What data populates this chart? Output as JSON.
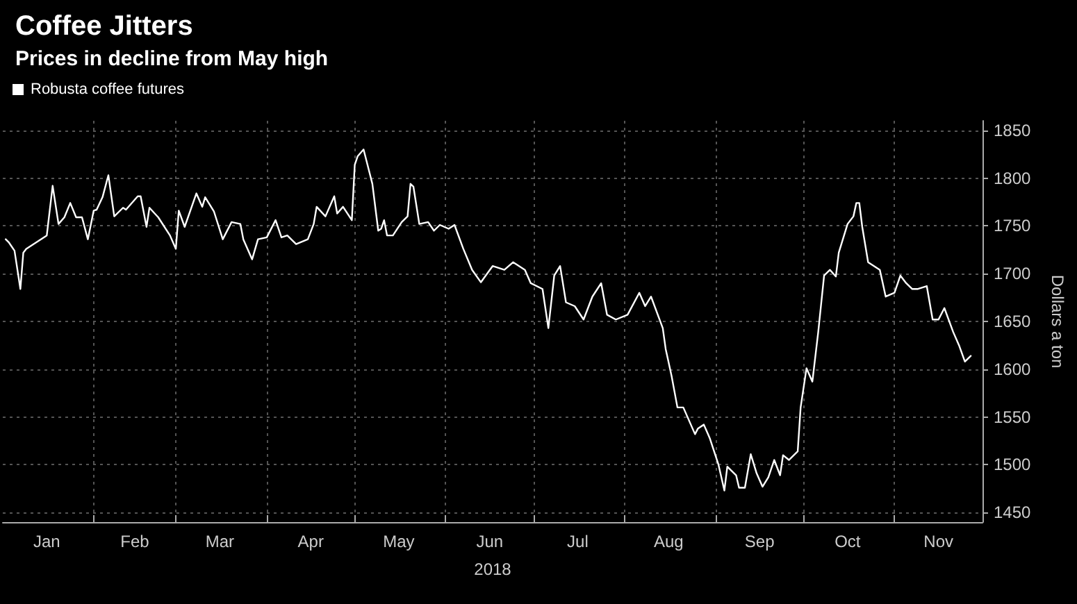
{
  "chart_data": {
    "type": "line",
    "title": "Coffee Jitters",
    "subtitle": "Prices in decline from May high",
    "xlabel": "2018",
    "ylabel": "Dollars a ton",
    "x": [
      "2018-01-02",
      "2018-01-03",
      "2018-01-05",
      "2018-01-07",
      "2018-01-08",
      "2018-01-09",
      "2018-01-16",
      "2018-01-18",
      "2018-01-20",
      "2018-01-22",
      "2018-01-24",
      "2018-01-26",
      "2018-01-28",
      "2018-01-30",
      "2018-02-01",
      "2018-02-02",
      "2018-02-04",
      "2018-02-06",
      "2018-02-08",
      "2018-02-11",
      "2018-02-12",
      "2018-02-16",
      "2018-02-17",
      "2018-02-19",
      "2018-02-20",
      "2018-02-23",
      "2018-02-27",
      "2018-03-01",
      "2018-03-02",
      "2018-03-04",
      "2018-03-08",
      "2018-03-10",
      "2018-03-11",
      "2018-03-14",
      "2018-03-17",
      "2018-03-20",
      "2018-03-23",
      "2018-03-24",
      "2018-03-27",
      "2018-03-29",
      "2018-04-01",
      "2018-04-04",
      "2018-04-06",
      "2018-04-08",
      "2018-04-11",
      "2018-04-15",
      "2018-04-17",
      "2018-04-18",
      "2018-04-21",
      "2018-04-24",
      "2018-04-25",
      "2018-04-27",
      "2018-04-30",
      "2018-05-01",
      "2018-05-02",
      "2018-05-04",
      "2018-05-07",
      "2018-05-09",
      "2018-05-10",
      "2018-05-11",
      "2018-05-12",
      "2018-05-14",
      "2018-05-17",
      "2018-05-19",
      "2018-05-20",
      "2018-05-21",
      "2018-05-23",
      "2018-05-26",
      "2018-05-28",
      "2018-05-30",
      "2018-06-02",
      "2018-06-04",
      "2018-06-07",
      "2018-06-10",
      "2018-06-13",
      "2018-06-17",
      "2018-06-21",
      "2018-06-24",
      "2018-06-28",
      "2018-06-30",
      "2018-07-04",
      "2018-07-06",
      "2018-07-08",
      "2018-07-10",
      "2018-07-12",
      "2018-07-15",
      "2018-07-18",
      "2018-07-21",
      "2018-07-24",
      "2018-07-26",
      "2018-07-29",
      "2018-08-02",
      "2018-08-06",
      "2018-08-08",
      "2018-08-10",
      "2018-08-14",
      "2018-08-15",
      "2018-08-17",
      "2018-08-19",
      "2018-08-21",
      "2018-08-25",
      "2018-08-26",
      "2018-08-28",
      "2018-08-30",
      "2018-09-02",
      "2018-09-04",
      "2018-09-05",
      "2018-09-08",
      "2018-09-09",
      "2018-09-11",
      "2018-09-13",
      "2018-09-15",
      "2018-09-17",
      "2018-09-19",
      "2018-09-21",
      "2018-09-23",
      "2018-09-24",
      "2018-09-26",
      "2018-09-29",
      "2018-09-30",
      "2018-10-02",
      "2018-10-04",
      "2018-10-06",
      "2018-10-08",
      "2018-10-10",
      "2018-10-12",
      "2018-10-13",
      "2018-10-16",
      "2018-10-18",
      "2018-10-19",
      "2018-10-20",
      "2018-10-21",
      "2018-10-23",
      "2018-10-27",
      "2018-10-29",
      "2018-11-01",
      "2018-11-03",
      "2018-11-05",
      "2018-11-07",
      "2018-11-09",
      "2018-11-12",
      "2018-11-14",
      "2018-11-16",
      "2018-11-18",
      "2018-11-21",
      "2018-11-23",
      "2018-11-25",
      "2018-11-27"
    ],
    "series": [
      {
        "name": "Robusta coffee futures",
        "color": "#ffffff",
        "values": [
          1736,
          1733,
          1724,
          1684,
          1722,
          1726,
          1740,
          1792,
          1752,
          1759,
          1774,
          1759,
          1759,
          1736,
          1766,
          1767,
          1780,
          1803,
          1760,
          1769,
          1767,
          1781,
          1781,
          1749,
          1769,
          1759,
          1740,
          1726,
          1766,
          1749,
          1784,
          1770,
          1780,
          1765,
          1736,
          1754,
          1752,
          1736,
          1715,
          1736,
          1738,
          1756,
          1738,
          1740,
          1731,
          1736,
          1752,
          1770,
          1760,
          1781,
          1763,
          1770,
          1756,
          1814,
          1823,
          1830,
          1794,
          1745,
          1747,
          1756,
          1740,
          1740,
          1754,
          1760,
          1794,
          1791,
          1752,
          1754,
          1745,
          1751,
          1747,
          1751,
          1726,
          1704,
          1691,
          1708,
          1704,
          1712,
          1704,
          1690,
          1684,
          1643,
          1698,
          1708,
          1670,
          1666,
          1652,
          1676,
          1690,
          1657,
          1652,
          1657,
          1680,
          1666,
          1676,
          1643,
          1621,
          1593,
          1560,
          1560,
          1532,
          1538,
          1542,
          1528,
          1500,
          1473,
          1498,
          1489,
          1476,
          1476,
          1511,
          1491,
          1477,
          1487,
          1505,
          1489,
          1510,
          1505,
          1514,
          1560,
          1601,
          1587,
          1639,
          1698,
          1704,
          1697,
          1722,
          1752,
          1760,
          1774,
          1774,
          1749,
          1712,
          1704,
          1676,
          1680,
          1698,
          1690,
          1684,
          1684,
          1687,
          1652,
          1652,
          1664,
          1639,
          1625,
          1608,
          1614
        ]
      }
    ],
    "xlim": [
      "2018-01-01",
      "2018-12-01"
    ],
    "xticks": [
      {
        "value": "2018-01-16",
        "label": "Jan"
      },
      {
        "value": "2018-02-01",
        "label": null
      },
      {
        "value": "2018-02-15",
        "label": "Feb"
      },
      {
        "value": "2018-03-01",
        "label": null
      },
      {
        "value": "2018-03-16",
        "label": "Mar"
      },
      {
        "value": "2018-04-01",
        "label": null
      },
      {
        "value": "2018-04-16",
        "label": "Apr"
      },
      {
        "value": "2018-05-01",
        "label": null
      },
      {
        "value": "2018-05-16",
        "label": "May"
      },
      {
        "value": "2018-06-01",
        "label": null
      },
      {
        "value": "2018-06-16",
        "label": "Jun"
      },
      {
        "value": "2018-07-01",
        "label": null
      },
      {
        "value": "2018-07-16",
        "label": "Jul"
      },
      {
        "value": "2018-08-01",
        "label": null
      },
      {
        "value": "2018-08-16",
        "label": "Aug"
      },
      {
        "value": "2018-09-01",
        "label": null
      },
      {
        "value": "2018-09-16",
        "label": "Sep"
      },
      {
        "value": "2018-10-01",
        "label": null
      },
      {
        "value": "2018-10-16",
        "label": "Oct"
      },
      {
        "value": "2018-11-01",
        "label": null
      },
      {
        "value": "2018-11-16",
        "label": "Nov"
      }
    ],
    "ylim": [
      1440,
      1860
    ],
    "yticks": [
      1450,
      1500,
      1550,
      1600,
      1650,
      1700,
      1750,
      1800,
      1850
    ],
    "grid": true,
    "legend": "top left",
    "marker": "none",
    "line_style": "solid"
  }
}
